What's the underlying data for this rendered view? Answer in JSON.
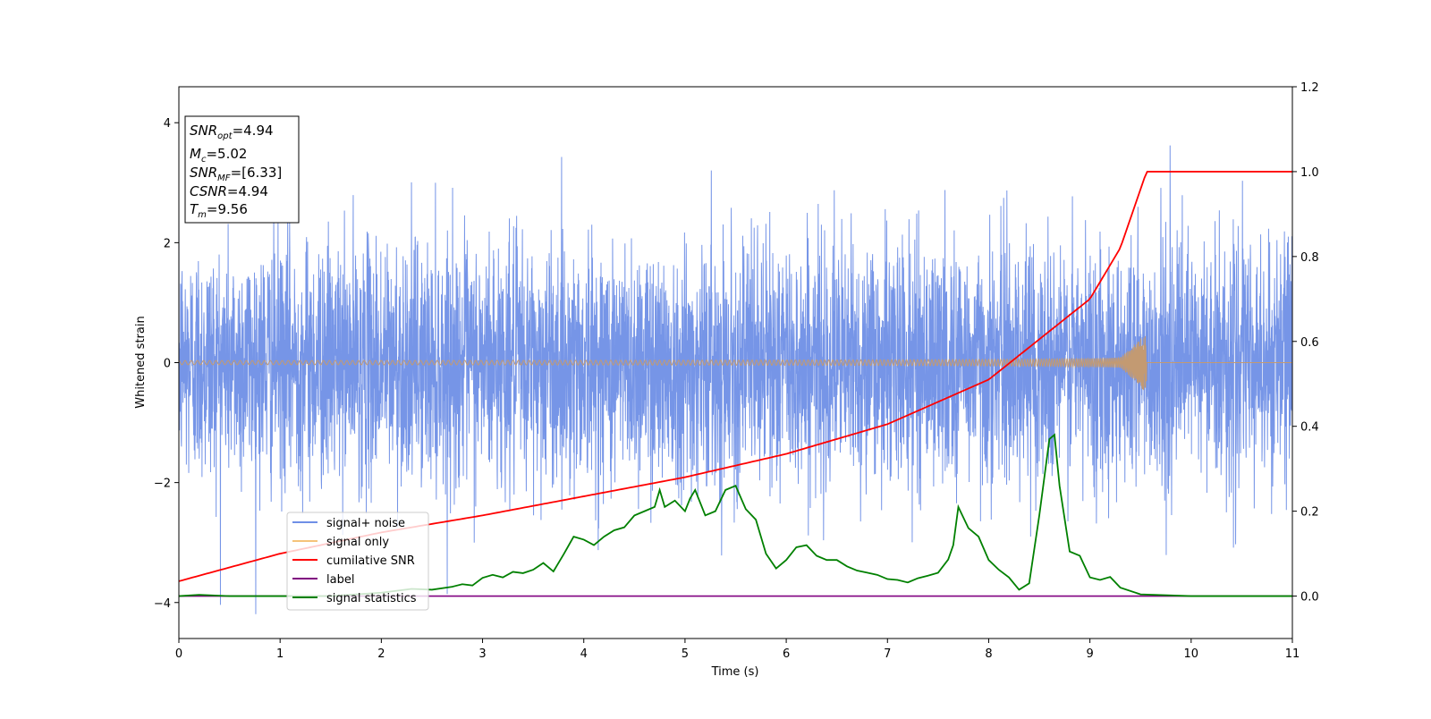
{
  "chart_data": {
    "type": "line",
    "title": "",
    "xlabel": "Time (s)",
    "ylabel": "Whitened strain",
    "xlim": [
      0,
      11
    ],
    "ylim": [
      -4.6,
      4.6
    ],
    "y2lim": [
      -0.1,
      1.2
    ],
    "x_ticks": [
      0,
      1,
      2,
      3,
      4,
      5,
      6,
      7,
      8,
      9,
      10,
      11
    ],
    "y_ticks": [
      -4,
      -2,
      0,
      2,
      4
    ],
    "y_tick_labels": [
      "−4",
      "−2",
      "0",
      "2",
      "4"
    ],
    "y2_ticks": [
      0.0,
      0.2,
      0.4,
      0.6,
      0.8,
      1.0,
      1.2
    ],
    "y2_tick_labels": [
      "0.0",
      "0.2",
      "0.4",
      "0.6",
      "0.8",
      "1.0",
      "1.2"
    ],
    "legend_position": "bottom-left",
    "annotation": {
      "lines": [
        {
          "sym": "SNR",
          "sub": "opt",
          "value": "=4.94"
        },
        {
          "sym": "M",
          "sub": "c",
          "value": "=5.02"
        },
        {
          "sym": "SNR",
          "sub": "MF",
          "value": "=[6.33]"
        },
        {
          "sym": "CSNR",
          "sub": "",
          "value": "=4.94"
        },
        {
          "sym": "T",
          "sub": "m",
          "value": "=9.56"
        }
      ]
    },
    "series": [
      {
        "name": "signal+ noise",
        "color": "#6f8fe6",
        "axis": "left",
        "noise_std": 1.0,
        "x_range": [
          0,
          11
        ]
      },
      {
        "name": "signal only",
        "color": "#f5c37a",
        "axis": "left",
        "chirp_end": 9.56,
        "amplitude_end": 0.5
      },
      {
        "name": "cumilative SNR",
        "color": "#ff0000",
        "axis": "right",
        "x": [
          0,
          1,
          2,
          3,
          4,
          5,
          6,
          7,
          8,
          9,
          9.3,
          9.56,
          11
        ],
        "y": [
          0.035,
          0.1,
          0.15,
          0.19,
          0.235,
          0.28,
          0.335,
          0.405,
          0.51,
          0.7,
          0.82,
          1.0,
          1.0
        ]
      },
      {
        "name": "label",
        "color": "#800080",
        "axis": "right",
        "x": [
          0,
          11
        ],
        "y": [
          0.0,
          0.0
        ]
      },
      {
        "name": "signal statistics",
        "color": "#008000",
        "axis": "right",
        "x": [
          0,
          0.2,
          0.5,
          1.0,
          1.5,
          2.0,
          2.3,
          2.5,
          2.7,
          2.8,
          2.9,
          3.0,
          3.1,
          3.2,
          3.3,
          3.4,
          3.5,
          3.6,
          3.7,
          3.8,
          3.9,
          4.0,
          4.1,
          4.2,
          4.3,
          4.4,
          4.5,
          4.6,
          4.7,
          4.75,
          4.8,
          4.9,
          5.0,
          5.05,
          5.1,
          5.2,
          5.3,
          5.4,
          5.5,
          5.6,
          5.7,
          5.8,
          5.9,
          6.0,
          6.1,
          6.2,
          6.3,
          6.4,
          6.5,
          6.6,
          6.7,
          6.8,
          6.9,
          7.0,
          7.1,
          7.2,
          7.3,
          7.4,
          7.5,
          7.6,
          7.65,
          7.7,
          7.8,
          7.9,
          8.0,
          8.1,
          8.2,
          8.3,
          8.4,
          8.5,
          8.6,
          8.65,
          8.7,
          8.8,
          8.9,
          9.0,
          9.1,
          9.2,
          9.3,
          9.5,
          10.0,
          10.5,
          11.0
        ],
        "y": [
          0.0,
          0.003,
          0.0,
          0.0,
          0.0,
          0.008,
          0.017,
          0.015,
          0.022,
          0.028,
          0.025,
          0.043,
          0.05,
          0.044,
          0.057,
          0.054,
          0.062,
          0.078,
          0.058,
          0.098,
          0.14,
          0.133,
          0.12,
          0.14,
          0.155,
          0.162,
          0.19,
          0.2,
          0.21,
          0.25,
          0.21,
          0.225,
          0.2,
          0.23,
          0.25,
          0.19,
          0.2,
          0.25,
          0.26,
          0.205,
          0.18,
          0.1,
          0.065,
          0.085,
          0.115,
          0.12,
          0.095,
          0.085,
          0.085,
          0.07,
          0.06,
          0.055,
          0.05,
          0.04,
          0.038,
          0.032,
          0.042,
          0.048,
          0.055,
          0.086,
          0.12,
          0.21,
          0.16,
          0.14,
          0.085,
          0.062,
          0.044,
          0.015,
          0.03,
          0.19,
          0.37,
          0.38,
          0.26,
          0.105,
          0.095,
          0.044,
          0.038,
          0.045,
          0.02,
          0.004,
          0.0,
          0.0,
          0.0
        ]
      }
    ]
  }
}
